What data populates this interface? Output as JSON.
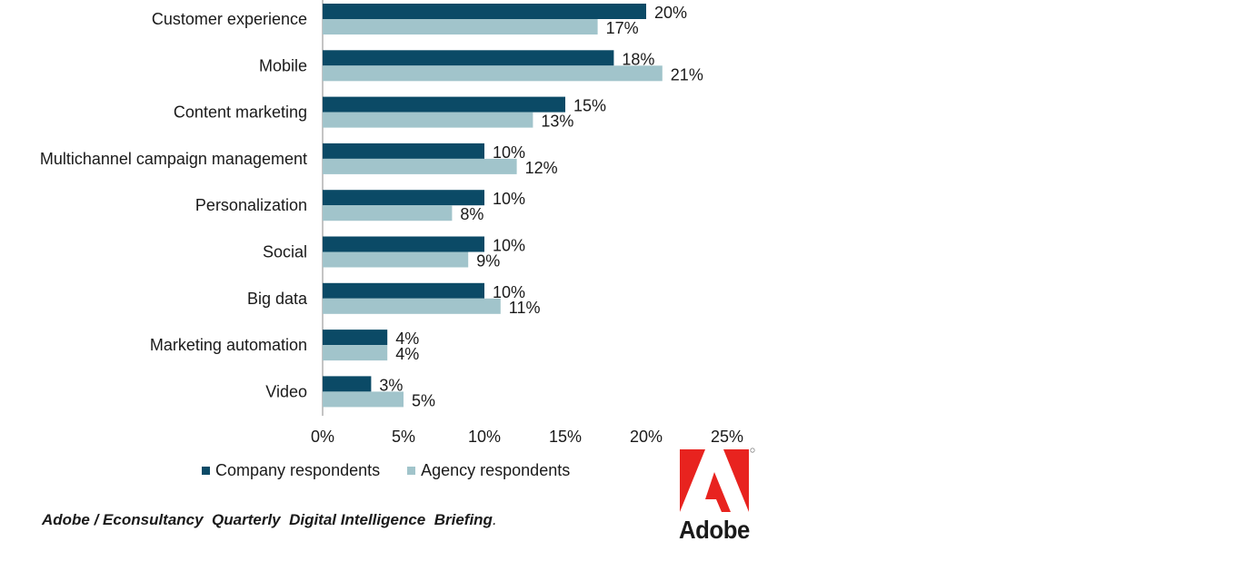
{
  "chart_data": {
    "type": "bar",
    "orientation": "horizontal",
    "categories": [
      "Customer experience",
      "Mobile",
      "Content marketing",
      "Multichannel campaign management",
      "Personalization",
      "Social",
      "Big data",
      "Marketing automation",
      "Video"
    ],
    "series": [
      {
        "name": "Company respondents",
        "color": "#0b4a66",
        "values": [
          20,
          18,
          15,
          10,
          10,
          10,
          10,
          4,
          3
        ],
        "labels": [
          "20%",
          "18%",
          "15%",
          "10%",
          "10%",
          "10%",
          "10%",
          "4%",
          "3%"
        ]
      },
      {
        "name": "Agency respondents",
        "color": "#a1c4cb",
        "values": [
          17,
          21,
          13,
          12,
          8,
          9,
          11,
          4,
          5
        ],
        "labels": [
          "17%",
          "21%",
          "13%",
          "12%",
          "8%",
          "9%",
          "11%",
          "4%",
          "5%"
        ]
      }
    ],
    "xlim": [
      0,
      25
    ],
    "xticks": [
      0,
      5,
      10,
      15,
      20,
      25
    ],
    "xtick_labels": [
      "0%",
      "5%",
      "10%",
      "15%",
      "20%",
      "25%"
    ],
    "grid": false,
    "legend_position": "bottom"
  },
  "legend": {
    "company_label": "Company respondents",
    "agency_label": "Agency respondents"
  },
  "source": {
    "text": "Adobe / Econsultancy  Quarterly  Digital Intelligence  Briefing",
    "punct": "."
  },
  "logo": {
    "word": "Adobe",
    "color": "#e8231f"
  }
}
